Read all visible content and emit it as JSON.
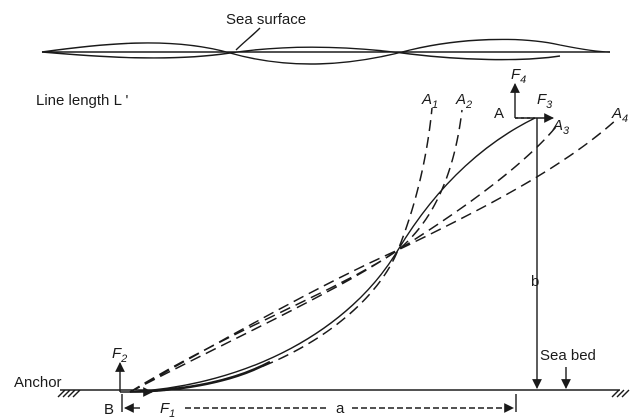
{
  "labels": {
    "sea_surface": "Sea surface",
    "line_length": "Line length L '",
    "sea_bed": "Sea bed",
    "anchor": "Anchor",
    "point_a": "A",
    "point_b": "B",
    "dim_a": "a",
    "dim_b": "b"
  },
  "forces": {
    "f1": {
      "base": "F",
      "sub": "1"
    },
    "f2": {
      "base": "F",
      "sub": "2"
    },
    "f3": {
      "base": "F",
      "sub": "3"
    },
    "f4": {
      "base": "F",
      "sub": "4"
    }
  },
  "curve_ends": [
    {
      "base": "A",
      "sub": "1"
    },
    {
      "base": "A",
      "sub": "2"
    },
    {
      "base": "A",
      "sub": "3"
    },
    {
      "base": "A",
      "sub": "4"
    }
  ]
}
